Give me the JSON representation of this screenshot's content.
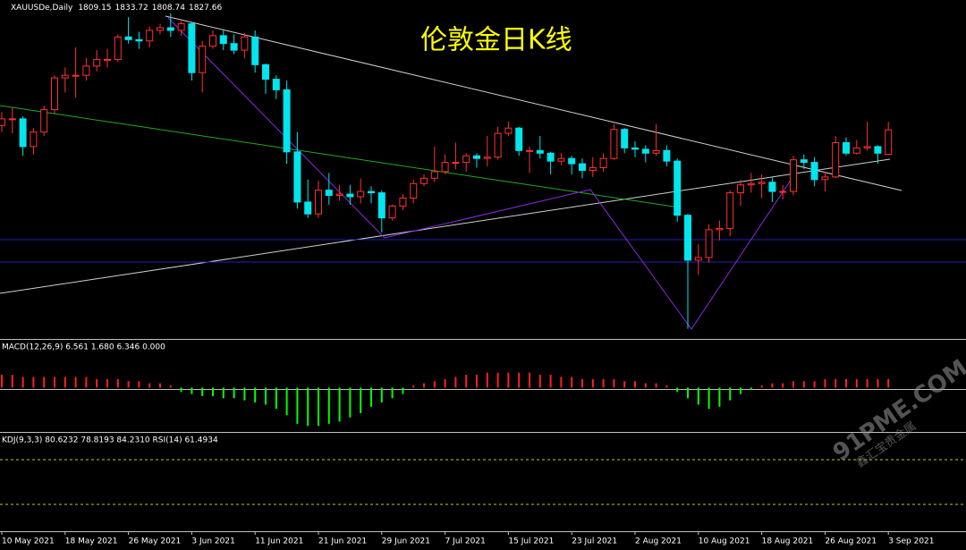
{
  "chart_data": [
    {
      "type": "candlestick",
      "symbol": "XAUUSDe,Daily",
      "title": "伦敦金日K线",
      "categories": [
        "10 May 2021",
        null,
        null,
        null,
        null,
        null,
        "18 May 2021",
        null,
        null,
        null,
        null,
        null,
        "26 May 2021",
        null,
        null,
        null,
        null,
        null,
        "3 Jun 2021",
        null,
        null,
        null,
        null,
        null,
        "11 Jun 2021",
        null,
        null,
        null,
        null,
        null,
        "21 Jun 2021",
        null,
        null,
        null,
        null,
        null,
        "29 Jun 2021",
        null,
        null,
        null,
        null,
        null,
        "7 Jul 2021",
        null,
        null,
        null,
        null,
        null,
        "15 Jul 2021",
        null,
        null,
        null,
        null,
        null,
        "23 Jul 2021",
        null,
        null,
        null,
        null,
        null,
        "2 Aug 2021",
        null,
        null,
        null,
        null,
        null,
        "10 Aug 2021",
        null,
        null,
        null,
        null,
        null,
        "18 Aug 2021",
        null,
        null,
        null,
        null,
        null,
        "26 Aug 2021",
        null,
        null,
        null,
        null,
        null,
        "3 Sep 2021"
      ],
      "open": [
        1831,
        1836,
        1836,
        1815,
        1826,
        1843,
        1867,
        1869,
        1869,
        1876,
        1881,
        1881,
        1898,
        1896,
        1895,
        1903,
        1905,
        1903,
        1908,
        1871,
        1891,
        1899,
        1893,
        1888,
        1898,
        1877,
        1866,
        1858,
        1811,
        1773,
        1764,
        1782,
        1778,
        1779,
        1777,
        1781,
        1780,
        1761,
        1770,
        1776,
        1787,
        1791,
        1796,
        1803,
        1803,
        1808,
        1806,
        1807,
        1825,
        1829,
        1812,
        1812,
        1810,
        1804,
        1806,
        1802,
        1797,
        1799,
        1806,
        1828,
        1814,
        1813,
        1810,
        1812,
        1804,
        1763,
        1729,
        1731,
        1752,
        1753,
        1780,
        1786,
        1787,
        1788,
        1781,
        1781,
        1805,
        1803,
        1790,
        1792,
        1818,
        1810,
        1814,
        1815,
        1809.15
      ],
      "high": [
        1841,
        1845,
        1838,
        1829,
        1846,
        1869,
        1875,
        1890,
        1882,
        1888,
        1889,
        1900,
        1913,
        1902,
        1906,
        1908,
        1916,
        1910,
        1909,
        1895,
        1903,
        1903,
        1900,
        1901,
        1903,
        1878,
        1869,
        1865,
        1826,
        1790,
        1789,
        1795,
        1786,
        1786,
        1791,
        1785,
        1782,
        1771,
        1779,
        1790,
        1794,
        1815,
        1809,
        1818,
        1810,
        1810,
        1823,
        1830,
        1834,
        1830,
        1815,
        1823,
        1811,
        1810,
        1808,
        1806,
        1807,
        1810,
        1832,
        1829,
        1819,
        1816,
        1832,
        1816,
        1806,
        1764,
        1741,
        1756,
        1759,
        1782,
        1790,
        1795,
        1794,
        1792,
        1786,
        1808,
        1809,
        1807,
        1796,
        1823,
        1822,
        1820,
        1834,
        1816,
        1833.72
      ],
      "low": [
        1826,
        1825,
        1808,
        1809,
        1823,
        1840,
        1856,
        1852,
        1865,
        1872,
        1875,
        1879,
        1893,
        1889,
        1890,
        1900,
        1898,
        1899,
        1865,
        1856,
        1889,
        1888,
        1885,
        1882,
        1871,
        1855,
        1851,
        1802,
        1768,
        1761,
        1761,
        1771,
        1774,
        1771,
        1772,
        1772,
        1750,
        1759,
        1767,
        1772,
        1785,
        1788,
        1794,
        1798,
        1796,
        1799,
        1800,
        1805,
        1823,
        1808,
        1795,
        1806,
        1794,
        1801,
        1794,
        1791,
        1792,
        1796,
        1805,
        1810,
        1807,
        1803,
        1808,
        1800,
        1758,
        1677,
        1718,
        1727,
        1744,
        1747,
        1770,
        1780,
        1776,
        1773,
        1775,
        1778,
        1798,
        1785,
        1781,
        1791,
        1808,
        1809,
        1812,
        1802,
        1808.74
      ],
      "close": [
        1836,
        1836,
        1815,
        1826,
        1843,
        1867,
        1869,
        1869,
        1876,
        1881,
        1881,
        1898,
        1896,
        1895,
        1903,
        1905,
        1903,
        1908,
        1871,
        1891,
        1899,
        1893,
        1888,
        1898,
        1877,
        1866,
        1858,
        1811,
        1773,
        1764,
        1782,
        1778,
        1779,
        1777,
        1781,
        1780,
        1761,
        1770,
        1776,
        1787,
        1791,
        1796,
        1803,
        1803,
        1808,
        1806,
        1807,
        1825,
        1829,
        1812,
        1812,
        1810,
        1804,
        1806,
        1802,
        1797,
        1799,
        1806,
        1828,
        1814,
        1813,
        1810,
        1812,
        1804,
        1763,
        1729,
        1731,
        1752,
        1753,
        1780,
        1786,
        1787,
        1788,
        1781,
        1781,
        1805,
        1803,
        1790,
        1792,
        1818,
        1810,
        1814,
        1815,
        1810,
        1827.66
      ],
      "up_color": "#ff3030",
      "down_color": "#00e5ee",
      "ylim": [
        1670,
        1926
      ]
    },
    {
      "type": "bar",
      "title": "MACD(12,26,9) 6.561 1.680 6.346 0.000",
      "values": [
        6,
        6,
        5,
        5,
        5,
        5,
        5,
        5,
        5,
        4,
        4,
        4,
        3,
        3,
        2,
        2,
        1,
        -2,
        -3,
        -4,
        -4,
        -5,
        -5,
        -6,
        -7,
        -8,
        -10,
        -13,
        -17,
        -18,
        -18,
        -17,
        -16,
        -14,
        -12,
        -9,
        -7,
        -5,
        -3,
        1,
        2,
        3,
        4,
        5,
        6,
        6,
        7,
        7,
        7,
        7,
        7,
        6,
        6,
        5,
        5,
        4,
        4,
        4,
        4,
        3,
        3,
        2,
        2,
        1,
        -2,
        -5,
        -8,
        -10,
        -9,
        -6,
        -3,
        -1,
        1,
        2,
        2,
        3,
        3,
        3,
        4,
        4,
        4,
        4,
        4,
        4,
        4
      ],
      "up_color": "#ff2020",
      "down_color": "#00ff00",
      "ylim": [
        -20,
        22
      ]
    },
    {
      "type": "line",
      "title": "KDJ(9,3,3) 80.6232 78.8193 84.2310 RSI(14) 61.4934"
    }
  ],
  "watermark": {
    "site": "91PME.COM",
    "name": "鑫汇宝贵金属"
  }
}
